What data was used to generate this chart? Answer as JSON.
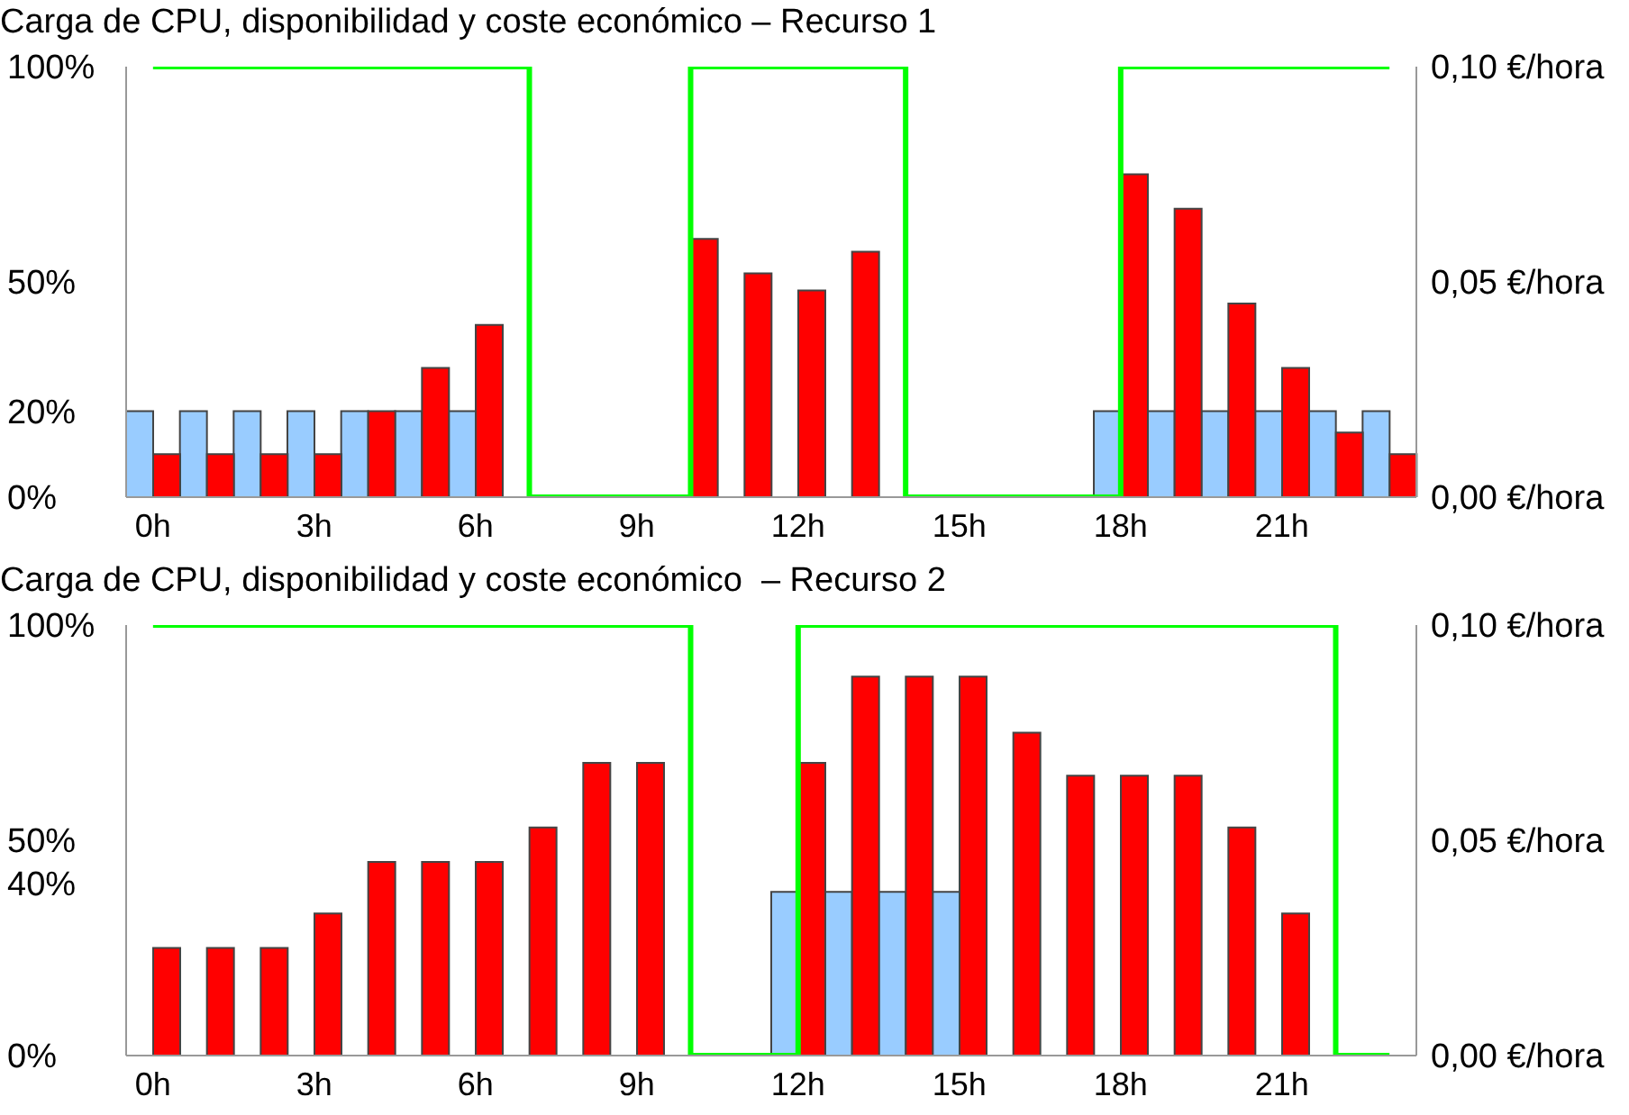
{
  "chart_data": [
    {
      "type": "bar",
      "title": "Carga de CPU, disponibilidad y coste económico – Recurso 1",
      "categories": [
        "0h",
        null,
        null,
        "3h",
        null,
        null,
        "6h",
        null,
        null,
        "9h",
        null,
        null,
        "12h",
        null,
        null,
        "15h",
        null,
        null,
        "18h",
        null,
        null,
        "21h",
        null,
        null
      ],
      "series": [
        {
          "color": "#99ccff",
          "axis": "y2",
          "values": [
            0.02,
            0.02,
            0.02,
            0.02,
            0.02,
            0.02,
            0.02,
            null,
            null,
            null,
            null,
            null,
            null,
            null,
            null,
            null,
            null,
            null,
            0.02,
            0.02,
            0.02,
            0.02,
            0.02,
            0.02
          ]
        },
        {
          "color": "#ff0000",
          "values": [
            10,
            10,
            10,
            10,
            20,
            30,
            40,
            null,
            null,
            null,
            60,
            52,
            48,
            57,
            null,
            null,
            null,
            null,
            75,
            67,
            45,
            30,
            15,
            10
          ]
        },
        {
          "type": "step",
          "color": "#00ff00",
          "values": [
            100,
            100,
            100,
            100,
            100,
            100,
            100,
            0,
            0,
            0,
            100,
            100,
            100,
            100,
            0,
            0,
            0,
            0,
            100,
            100,
            100,
            100,
            100,
            100
          ]
        }
      ],
      "ylim": [
        0,
        100
      ],
      "yticks": [
        {
          "value": 0,
          "label": "0%"
        },
        {
          "value": 20,
          "label": "20%"
        },
        {
          "value": 50,
          "label": "50%"
        },
        {
          "value": 100,
          "label": "100%"
        }
      ],
      "y2lim": [
        0,
        0.1
      ],
      "y2ticks": [
        {
          "value": 0,
          "label": "0,00 €/hora"
        },
        {
          "value": 0.05,
          "label": "0,05 €/hora"
        },
        {
          "value": 0.1,
          "label": "0,10 €/hora"
        }
      ]
    },
    {
      "type": "bar",
      "title": "Carga de CPU, disponibilidad y coste económico  – Recurso 2",
      "categories": [
        "0h",
        null,
        null,
        "3h",
        null,
        null,
        "6h",
        null,
        null,
        "9h",
        null,
        null,
        "12h",
        null,
        null,
        "15h",
        null,
        null,
        "18h",
        null,
        null,
        "21h",
        null,
        null
      ],
      "series": [
        {
          "color": "#99ccff",
          "axis": "y2",
          "values": [
            null,
            null,
            null,
            null,
            null,
            null,
            null,
            null,
            null,
            null,
            null,
            null,
            0.038,
            0.038,
            0.038,
            0.038,
            null,
            null,
            null,
            null,
            null,
            null,
            null,
            null
          ]
        },
        {
          "color": "#ff0000",
          "values": [
            25,
            25,
            25,
            33,
            45,
            45,
            45,
            53,
            68,
            68,
            null,
            null,
            68,
            88,
            88,
            88,
            75,
            65,
            65,
            65,
            53,
            33,
            null,
            null
          ]
        },
        {
          "type": "step",
          "color": "#00ff00",
          "values": [
            100,
            100,
            100,
            100,
            100,
            100,
            100,
            100,
            100,
            100,
            0,
            0,
            100,
            100,
            100,
            100,
            100,
            100,
            100,
            100,
            100,
            100,
            0,
            0
          ]
        }
      ],
      "ylim": [
        0,
        100
      ],
      "yticks": [
        {
          "value": 0,
          "label": "0%"
        },
        {
          "value": 40,
          "label": "40%"
        },
        {
          "value": 50,
          "label": "50%"
        },
        {
          "value": 100,
          "label": "100%"
        }
      ],
      "y2lim": [
        0,
        0.1
      ],
      "y2ticks": [
        {
          "value": 0,
          "label": "0,00 €/hora"
        },
        {
          "value": 0.05,
          "label": "0,05 €/hora"
        },
        {
          "value": 0.1,
          "label": "0,10 €/hora"
        }
      ]
    }
  ]
}
